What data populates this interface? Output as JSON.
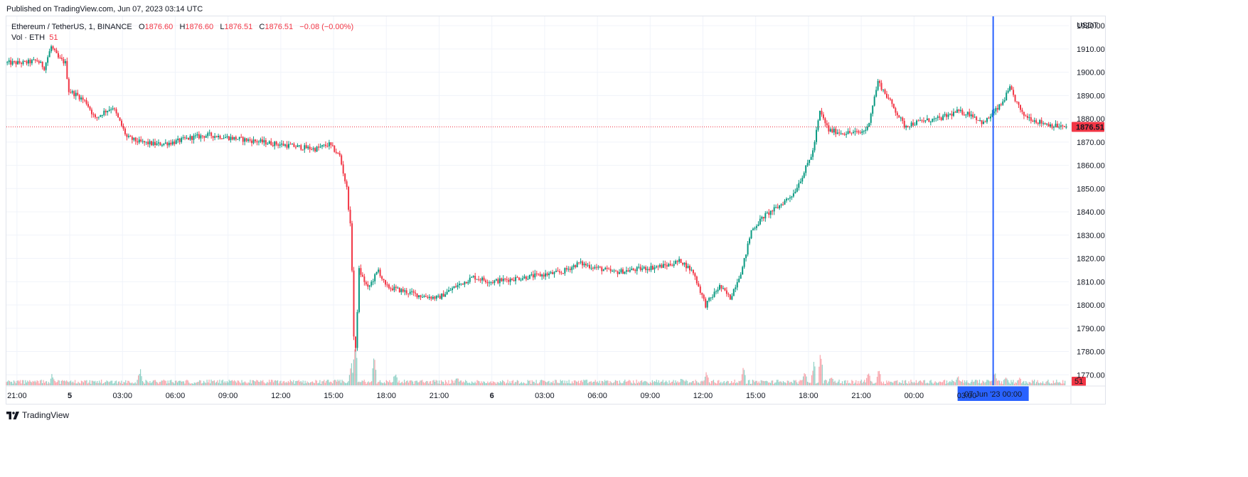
{
  "published_text": "Published on TradingView.com, Jun 07, 2023 03:14 UTC",
  "brand": {
    "name": "TradingView",
    "icon": "tradingview-logo-icon"
  },
  "legend": {
    "symbol": "Ethereum / TetherUS, 1, BINANCE",
    "open_label": "O",
    "open": "1876.60",
    "high_label": "H",
    "high": "1876.60",
    "low_label": "L",
    "low": "1876.51",
    "close_label": "C",
    "close": "1876.51",
    "change": "−0.08 (−0.00%)",
    "volume_label": "Vol · ETH",
    "volume": "51"
  },
  "colors": {
    "up": "#089981",
    "down": "#f23645",
    "crosshair": "#2962ff",
    "grid": "#f0f3fa"
  },
  "chart_data": {
    "type": "candlestick",
    "currency": "USDT",
    "y_ticks": [
      "1920.00",
      "1910.00",
      "1900.00",
      "1890.00",
      "1880.00",
      "1870.00",
      "1860.00",
      "1850.00",
      "1840.00",
      "1830.00",
      "1820.00",
      "1810.00",
      "1800.00",
      "1790.00",
      "1780.00",
      "1770.00"
    ],
    "ylim": [
      1765.5,
      1924
    ],
    "x_ticks": [
      "21:00",
      "5",
      "03:00",
      "06:00",
      "09:00",
      "12:00",
      "15:00",
      "18:00",
      "21:00",
      "6",
      "03:00",
      "06:00",
      "09:00",
      "12:00",
      "15:00",
      "18:00",
      "21:00",
      "00:00",
      "03:00"
    ],
    "x_tick_hours": [
      0,
      3,
      6,
      9,
      12,
      15,
      18,
      21,
      24,
      27,
      30,
      33,
      36,
      39,
      42,
      45,
      48,
      51,
      54
    ],
    "bold_x_ticks": [
      "5",
      "6"
    ],
    "price_path": [
      [
        -0.6,
        1904
      ],
      [
        0.5,
        1904
      ],
      [
        1.2,
        1905
      ],
      [
        1.6,
        1902
      ],
      [
        2.0,
        1911
      ],
      [
        2.4,
        1906
      ],
      [
        2.8,
        1904
      ],
      [
        3.0,
        1892
      ],
      [
        3.5,
        1890
      ],
      [
        4.0,
        1887
      ],
      [
        4.5,
        1880
      ],
      [
        5.0,
        1883
      ],
      [
        5.5,
        1885
      ],
      [
        6.0,
        1877
      ],
      [
        6.3,
        1872
      ],
      [
        7.0,
        1870
      ],
      [
        8.0,
        1869
      ],
      [
        9.0,
        1870
      ],
      [
        10.0,
        1872
      ],
      [
        11.0,
        1873
      ],
      [
        12.0,
        1872
      ],
      [
        13.0,
        1871
      ],
      [
        14.0,
        1870
      ],
      [
        15.0,
        1869
      ],
      [
        16.0,
        1868
      ],
      [
        17.0,
        1867
      ],
      [
        17.8,
        1869
      ],
      [
        18.4,
        1864
      ],
      [
        18.8,
        1850
      ],
      [
        19.05,
        1830
      ],
      [
        19.25,
        1772
      ],
      [
        19.5,
        1815
      ],
      [
        20.0,
        1807
      ],
      [
        20.6,
        1815
      ],
      [
        21.0,
        1808
      ],
      [
        22.0,
        1806
      ],
      [
        23.0,
        1804
      ],
      [
        24.0,
        1803
      ],
      [
        25.0,
        1808
      ],
      [
        26.0,
        1812
      ],
      [
        27.0,
        1810
      ],
      [
        28.0,
        1811
      ],
      [
        29.0,
        1812
      ],
      [
        30.0,
        1813
      ],
      [
        31.0,
        1814
      ],
      [
        32.0,
        1818
      ],
      [
        33.0,
        1816
      ],
      [
        34.0,
        1814
      ],
      [
        35.0,
        1815
      ],
      [
        36.0,
        1816
      ],
      [
        37.0,
        1817
      ],
      [
        37.8,
        1819
      ],
      [
        38.5,
        1814
      ],
      [
        39.2,
        1800
      ],
      [
        40.0,
        1808
      ],
      [
        40.6,
        1803
      ],
      [
        41.3,
        1816
      ],
      [
        41.8,
        1832
      ],
      [
        42.5,
        1838
      ],
      [
        43.3,
        1842
      ],
      [
        44.2,
        1848
      ],
      [
        44.8,
        1857
      ],
      [
        45.3,
        1866
      ],
      [
        45.7,
        1883
      ],
      [
        46.2,
        1875
      ],
      [
        47.0,
        1874
      ],
      [
        48.0,
        1874
      ],
      [
        48.4,
        1876
      ],
      [
        49.0,
        1896
      ],
      [
        49.8,
        1886
      ],
      [
        50.5,
        1877
      ],
      [
        51.5,
        1879
      ],
      [
        52.5,
        1880
      ],
      [
        53.5,
        1883
      ],
      [
        54.3,
        1882
      ],
      [
        55.0,
        1878
      ],
      [
        56.0,
        1886
      ],
      [
        56.5,
        1893
      ],
      [
        57.2,
        1882
      ],
      [
        58.0,
        1879
      ],
      [
        59.0,
        1877
      ],
      [
        59.6,
        1876.51
      ]
    ],
    "volume_spikes": [
      [
        2.0,
        18
      ],
      [
        7.0,
        26
      ],
      [
        19.0,
        34
      ],
      [
        19.25,
        72
      ],
      [
        20.3,
        50
      ],
      [
        21.5,
        20
      ],
      [
        25.0,
        14
      ],
      [
        37.8,
        12
      ],
      [
        39.2,
        22
      ],
      [
        41.3,
        30
      ],
      [
        44.8,
        24
      ],
      [
        45.3,
        38
      ],
      [
        45.7,
        56
      ],
      [
        46.3,
        16
      ],
      [
        48.4,
        22
      ],
      [
        49.0,
        24
      ],
      [
        53.5,
        14
      ],
      [
        55.6,
        20
      ],
      [
        56.2,
        14
      ],
      [
        57.0,
        12
      ]
    ],
    "last_price": 1876.51,
    "last_price_label": "1876.51",
    "last_volume": 51,
    "last_volume_label": "51",
    "crosshair_time": 55.5,
    "crosshair_label": "07 Jun '23   00:00",
    "grid": true,
    "volume_overlay": true
  }
}
